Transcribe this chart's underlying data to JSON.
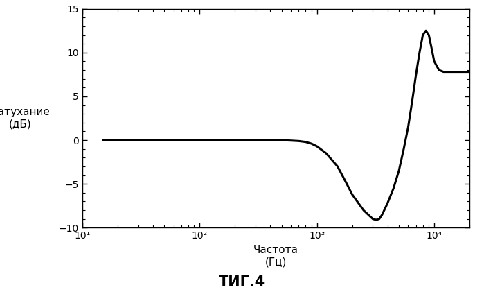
{
  "title": "ΤИГ.4",
  "xlabel_line1": "Частота",
  "xlabel_line2": "(Гц)",
  "ylabel_line1": "Затухание",
  "ylabel_line2": "(дБ)",
  "xlim": [
    10,
    20000
  ],
  "ylim": [
    -10,
    15
  ],
  "yticks": [
    -10,
    -5,
    0,
    5,
    10,
    15
  ],
  "xticks": [
    10,
    100,
    1000,
    10000
  ],
  "xtick_labels": [
    "10¹",
    "10²",
    "10³",
    "10⁴"
  ],
  "line_color": "#000000",
  "line_width": 2.2,
  "background_color": "#ffffff",
  "curve_x": [
    15,
    20,
    30,
    50,
    80,
    100,
    200,
    300,
    400,
    500,
    600,
    700,
    800,
    900,
    1000,
    1200,
    1500,
    1800,
    2000,
    2500,
    3000,
    3200,
    3400,
    3600,
    4000,
    4500,
    5000,
    5500,
    6000,
    6500,
    7000,
    7500,
    8000,
    8500,
    9000,
    9500,
    10000,
    11000,
    12000,
    14000,
    16000,
    18000,
    20000
  ],
  "curve_y": [
    0.0,
    0.0,
    0.0,
    0.0,
    0.0,
    0.0,
    0.0,
    0.0,
    0.0,
    0.0,
    -0.05,
    -0.1,
    -0.2,
    -0.4,
    -0.7,
    -1.5,
    -3.0,
    -5.0,
    -6.2,
    -8.0,
    -9.0,
    -9.1,
    -9.0,
    -8.5,
    -7.2,
    -5.5,
    -3.5,
    -1.0,
    1.5,
    4.5,
    7.5,
    10.0,
    12.0,
    12.5,
    12.0,
    10.5,
    9.0,
    8.0,
    7.8,
    7.8,
    7.8,
    7.8,
    7.8
  ]
}
